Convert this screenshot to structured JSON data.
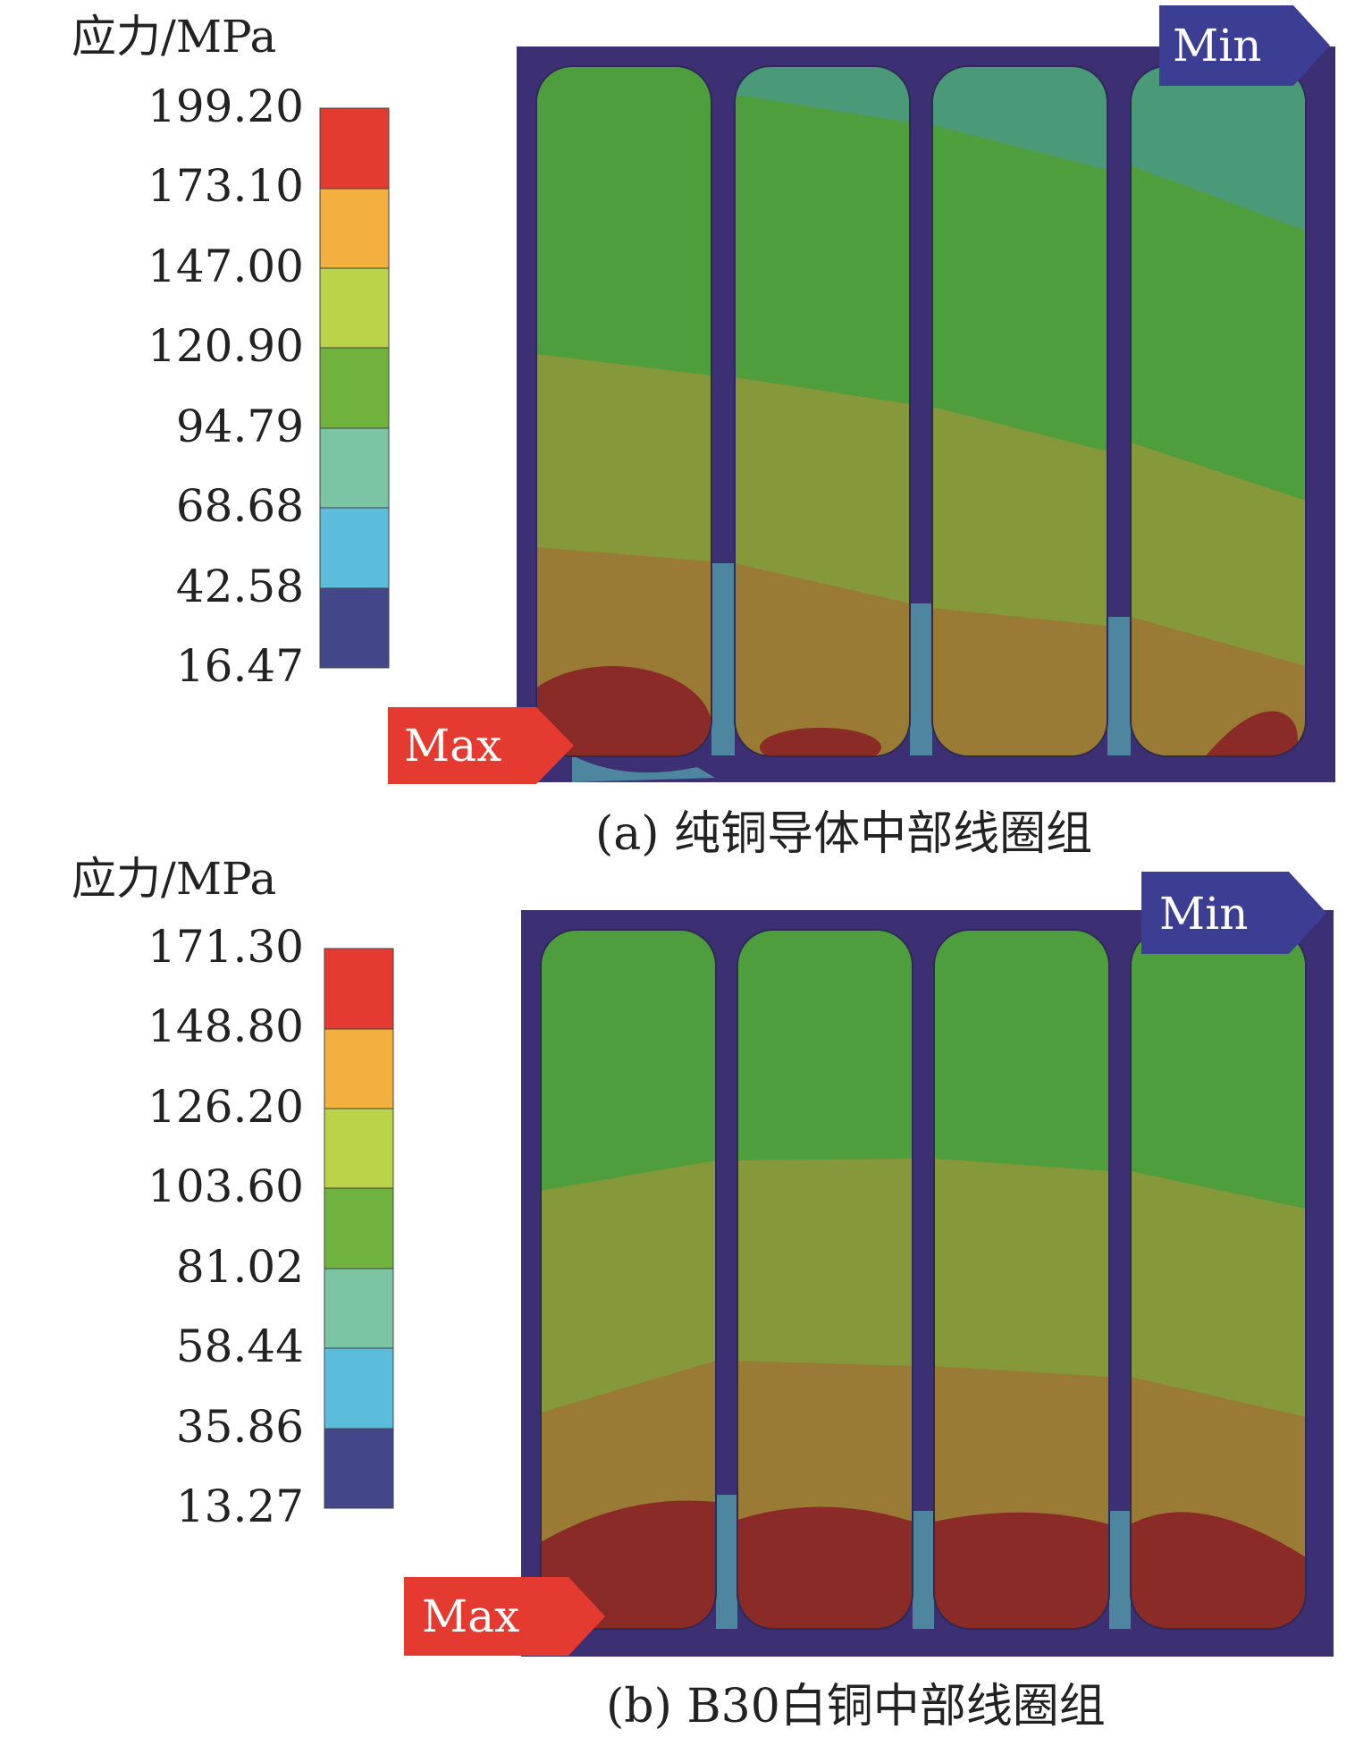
{
  "colors": {
    "bin_red": "#e53a30",
    "bin_orange": "#f2b13f",
    "bin_yellowgreen": "#bad348",
    "bin_green": "#6fb23d",
    "bin_teal": "#7bc4a4",
    "bin_cyan": "#5bbcdc",
    "bin_navy": "#414789",
    "frame": "#3d2f73",
    "max_tag": "#e53a30",
    "min_tag": "#3c3e94",
    "field_top": "#4f9e3d",
    "field_teal": "#4a9a7a",
    "field_mid": "#85993b",
    "field_bottom": "#9a7b36",
    "field_max": "#8a2b27",
    "field_gap": "#4e86a0"
  },
  "panels": [
    {
      "legend_title": "应力/MPa",
      "ticks": [
        "199.20",
        "173.10",
        "147.00",
        "120.90",
        "94.79",
        "68.68",
        "42.58",
        "16.47"
      ],
      "max_label": "Max",
      "min_label": "Min",
      "caption": "(a) 纯铜导体中部线圈组"
    },
    {
      "legend_title": "应力/MPa",
      "ticks": [
        "171.30",
        "148.80",
        "126.20",
        "103.60",
        "81.02",
        "58.44",
        "35.86",
        "13.27"
      ],
      "max_label": "Max",
      "min_label": "Min",
      "caption": "(b) B30白铜中部线圈组"
    }
  ]
}
